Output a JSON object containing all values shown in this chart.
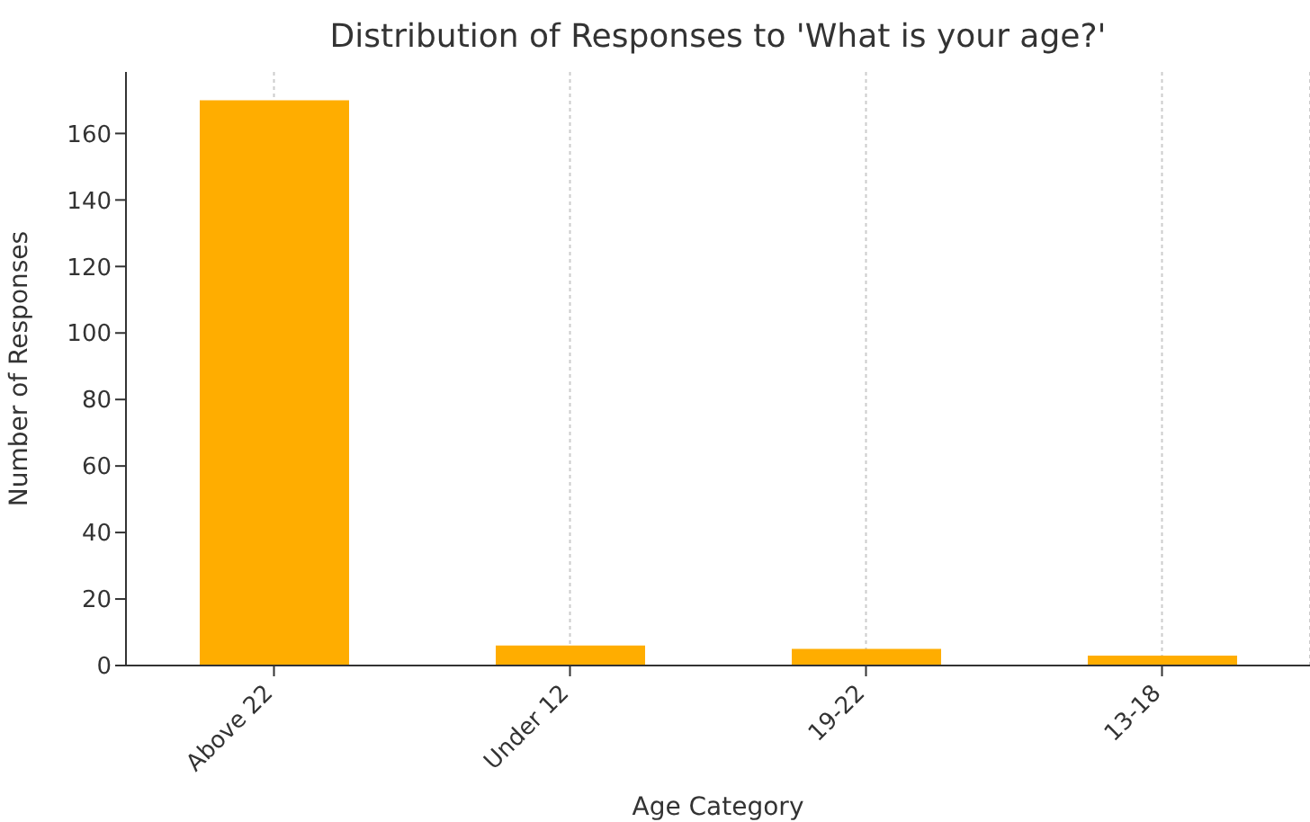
{
  "chart_data": {
    "type": "bar",
    "title": "Distribution of Responses to 'What is your age?'",
    "xlabel": "Age Category",
    "ylabel": "Number of Responses",
    "categories": [
      "Above 22",
      "Under 12",
      "19-22",
      "13-18"
    ],
    "values": [
      170,
      6,
      5,
      3
    ],
    "color": "#ffad00",
    "ylim": [
      0,
      178.5
    ],
    "yticks": [
      0,
      20,
      40,
      60,
      80,
      100,
      120,
      140,
      160
    ],
    "grid": "x"
  }
}
